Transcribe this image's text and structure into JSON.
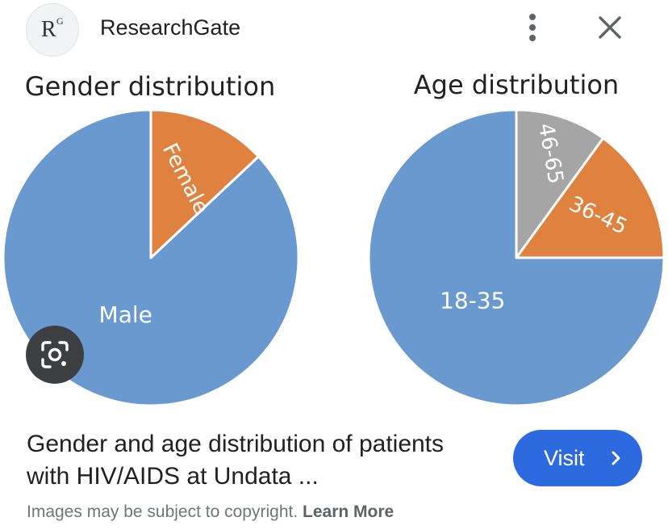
{
  "header": {
    "source_name": "ResearchGate",
    "logo_letter": "R",
    "logo_superscript": "G",
    "more_icon": "more-vert-icon",
    "close_icon": "close-icon"
  },
  "chart_data": [
    {
      "type": "pie",
      "title": "Gender distribution",
      "categories": [
        "Male",
        "Female"
      ],
      "values": [
        87,
        13
      ],
      "colors": [
        "#6a99cf",
        "#e0823f"
      ],
      "start_angle_deg": 0,
      "direction": "counterclockwise",
      "legend": "none"
    },
    {
      "type": "pie",
      "title": "Age distribution",
      "categories": [
        "18-35",
        "36-45",
        "46-65"
      ],
      "values": [
        75,
        15,
        10
      ],
      "colors": [
        "#6a99cf",
        "#e0823f",
        "#a5a5a5"
      ],
      "start_angle_deg": 0,
      "direction": "counterclockwise",
      "legend": "none"
    }
  ],
  "lens_icon": "google-lens-icon",
  "caption": "Gender and age distribution of patients with HIV/AIDS at Undata ...",
  "visit_button": {
    "label": "Visit",
    "icon": "chevron-right-icon",
    "color": "#2d6ae0"
  },
  "footer": {
    "text": "Images may be subject to copyright.",
    "link": "Learn More"
  }
}
